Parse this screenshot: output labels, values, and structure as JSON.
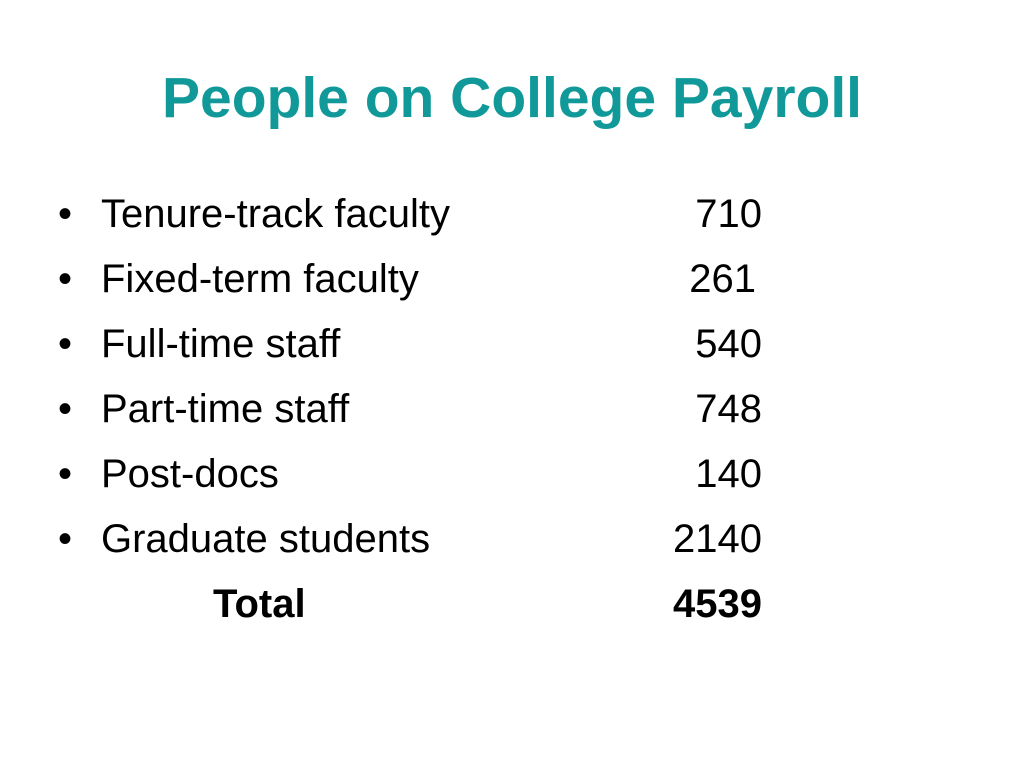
{
  "slide": {
    "title": "People on College Payroll",
    "bullet_glyph": "•",
    "items": [
      {
        "label": "Tenure-track faculty",
        "value": "710"
      },
      {
        "label": "Fixed-term faculty",
        "value": "261"
      },
      {
        "label": "Full-time staff",
        "value": "540"
      },
      {
        "label": "Part-time staff",
        "value": "748"
      },
      {
        "label": "Post-docs",
        "value": "140"
      },
      {
        "label": "Graduate students",
        "value": "2140"
      }
    ],
    "total": {
      "label": "Total",
      "value": "4539"
    },
    "colors": {
      "title": "#119999",
      "text": "#000000",
      "background": "#ffffff"
    }
  }
}
